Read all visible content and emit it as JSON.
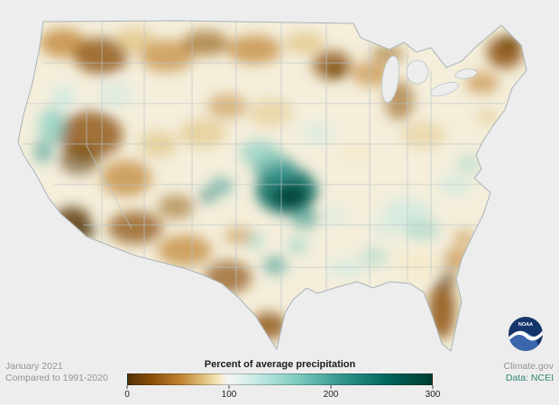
{
  "page": {
    "background_color": "#ededed",
    "description": "U.S. map of January 2021 precipitation as percent of average"
  },
  "footer": {
    "date_label": "January 2021",
    "baseline_label": "Compared to 1991-2020",
    "site_label": "Climate.gov",
    "data_source_label": "Data: NCEI",
    "noaa_label": "NOAA"
  },
  "chart_data": {
    "type": "heatmap",
    "title": "Percent of average precipitation",
    "period": "January 2021",
    "baseline": "1991-2020",
    "geography": "Contiguous United States",
    "colorbar": {
      "min": 0,
      "max": 300,
      "ticks": [
        0,
        100,
        200,
        300
      ],
      "tick_positions_pct": [
        0,
        33.33,
        66.67,
        100
      ],
      "palette_name": "diverging brown-white-teal (dry to wet)",
      "white_point_value": 100,
      "stops": [
        {
          "pos": 0,
          "color": "#543005"
        },
        {
          "pos": 8,
          "color": "#8c510a"
        },
        {
          "pos": 17,
          "color": "#bf812d"
        },
        {
          "pos": 25,
          "color": "#dfc27d"
        },
        {
          "pos": 30,
          "color": "#f6e8c3"
        },
        {
          "pos": 33,
          "color": "#f5f5f5"
        },
        {
          "pos": 42,
          "color": "#c7eae5"
        },
        {
          "pos": 55,
          "color": "#80cdc1"
        },
        {
          "pos": 70,
          "color": "#35978f"
        },
        {
          "pos": 85,
          "color": "#01665e"
        },
        {
          "pos": 100,
          "color": "#003c30"
        }
      ]
    },
    "anomaly_regions": [
      {
        "area": "Southern California coast",
        "precipitation": "well below average"
      },
      {
        "area": "Nevada / Great Basin / Utah",
        "precipitation": "below average"
      },
      {
        "area": "Arizona and New Mexico",
        "precipitation": "below average"
      },
      {
        "area": "Central Plains (Kansas / Nebraska)",
        "precipitation": "well above average (200-300%)"
      },
      {
        "area": "Northern California and southwest Oregon coast",
        "precipitation": "above average"
      },
      {
        "area": "Florida peninsula",
        "precipitation": "well below average"
      },
      {
        "area": "Maine / northern New England",
        "precipitation": "well below average"
      },
      {
        "area": "Minnesota / upper Midwest",
        "precipitation": "below average"
      },
      {
        "area": "Ohio Valley and mid-Atlantic",
        "precipitation": "slightly above average"
      },
      {
        "area": "South and west Texas",
        "precipitation": "below average"
      },
      {
        "area": "Central Texas pockets",
        "precipitation": "above average"
      }
    ]
  }
}
